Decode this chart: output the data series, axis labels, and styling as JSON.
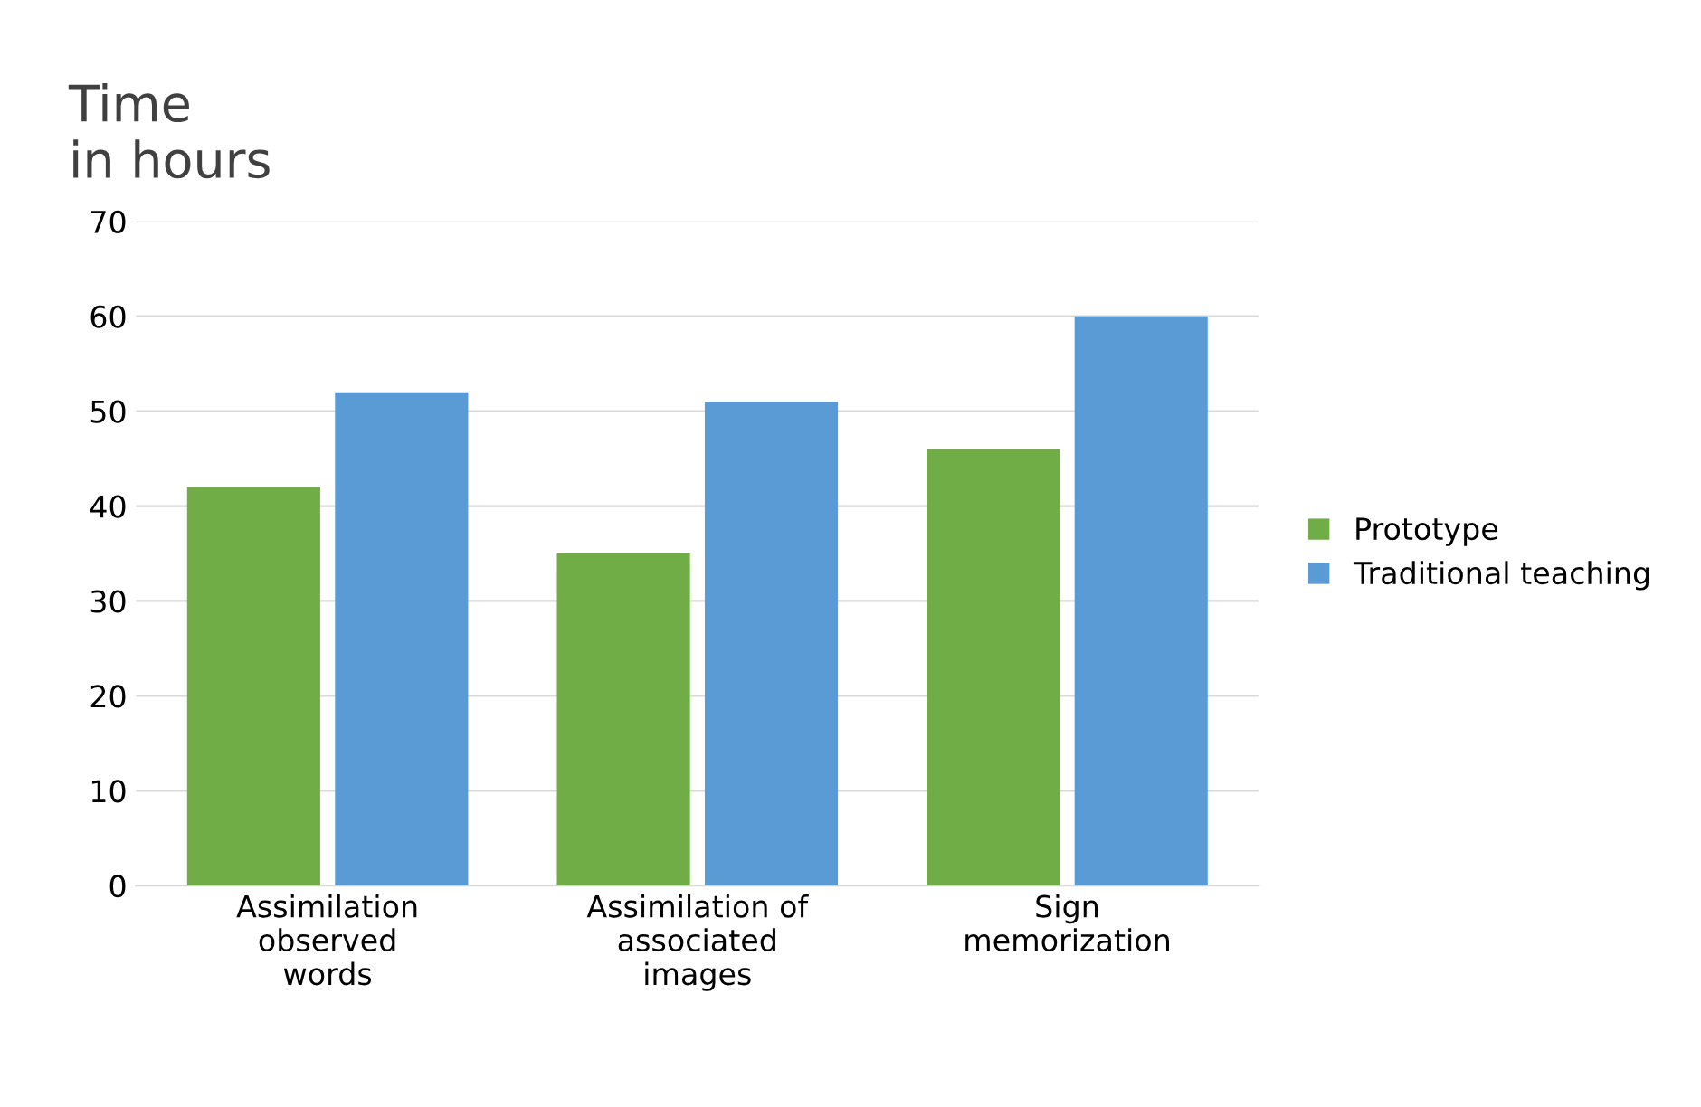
{
  "chart_data": {
    "type": "bar",
    "ylabel": "Time\nin hours",
    "categories": [
      "Assimilation\nobserved\nwords",
      "Assimilation of\nassociated\nimages",
      "Sign\nmemorization"
    ],
    "series": [
      {
        "name": "Prototype",
        "color": "#70ad47",
        "values": [
          42,
          35,
          46
        ]
      },
      {
        "name": "Traditional teaching",
        "color": "#5b9bd5",
        "values": [
          52,
          51,
          60
        ]
      }
    ],
    "ylim": [
      0,
      70
    ],
    "yticks": [
      0,
      10,
      20,
      30,
      40,
      50,
      60,
      70
    ],
    "grid": "y",
    "legend": "right"
  }
}
